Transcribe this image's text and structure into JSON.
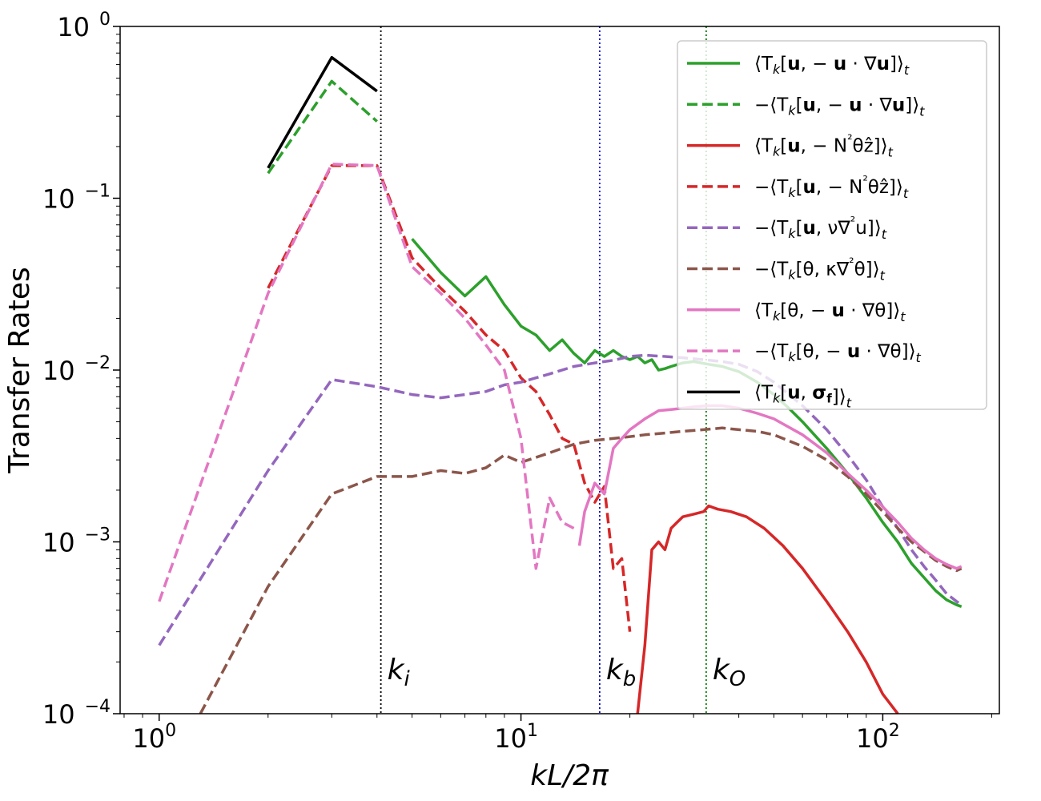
{
  "chart_data": {
    "type": "line",
    "xscale": "log",
    "yscale": "log",
    "xlim": [
      0.78,
      210
    ],
    "ylim": [
      0.0001,
      1
    ],
    "xlabel": "kL/2π",
    "ylabel": "Transfer Rates",
    "x_ticks": [
      {
        "value": 1,
        "label": "10",
        "exp": "0"
      },
      {
        "value": 10,
        "label": "10",
        "exp": "1"
      },
      {
        "value": 100,
        "label": "10",
        "exp": "2"
      }
    ],
    "y_ticks": [
      {
        "value": 0.0001,
        "label": "10",
        "exp": "−4"
      },
      {
        "value": 0.001,
        "label": "10",
        "exp": "−3"
      },
      {
        "value": 0.01,
        "label": "10",
        "exp": "−2"
      },
      {
        "value": 0.1,
        "label": "10",
        "exp": "−1"
      },
      {
        "value": 1,
        "label": "10",
        "exp": "0"
      }
    ],
    "vlines": [
      {
        "name": "k_i",
        "x": 4.1,
        "color": "#000000",
        "label": "k",
        "sub": "i",
        "label_y": 0.00018
      },
      {
        "name": "k_b",
        "x": 16.5,
        "color": "#0000cc",
        "label": "k",
        "sub": "b",
        "label_y": 0.00018
      },
      {
        "name": "k_O",
        "x": 32.5,
        "color": "#008000",
        "label": "k",
        "sub": "O",
        "label_y": 0.00018
      }
    ],
    "legend_position": "upper-right",
    "series": [
      {
        "name": "Tu_adv_pos",
        "color": "#2ca02c",
        "dash": "solid",
        "legend": {
          "pre": "⟨T",
          "k": "k",
          "a": "[",
          "b": "u",
          "c": ", − ",
          "d": "u",
          "e": " · ∇",
          "f": "u",
          "g": "]⟩",
          "t": "t"
        },
        "x": [
          5,
          6,
          7,
          8,
          9,
          10,
          11,
          12,
          13,
          14,
          15,
          16,
          17,
          18,
          19,
          20,
          21,
          22,
          23,
          24,
          25,
          26,
          28,
          30,
          33,
          36,
          40,
          45,
          50,
          55,
          60,
          70,
          80,
          90,
          100,
          110,
          120,
          130,
          140,
          150,
          160,
          165
        ],
        "y": [
          0.058,
          0.037,
          0.027,
          0.035,
          0.024,
          0.018,
          0.016,
          0.013,
          0.015,
          0.0125,
          0.011,
          0.013,
          0.012,
          0.013,
          0.012,
          0.0115,
          0.012,
          0.011,
          0.0115,
          0.01,
          0.0102,
          0.0105,
          0.011,
          0.0112,
          0.0108,
          0.0105,
          0.0098,
          0.0085,
          0.0072,
          0.006,
          0.005,
          0.0035,
          0.0025,
          0.0018,
          0.0013,
          0.001,
          0.00075,
          0.00062,
          0.00052,
          0.00046,
          0.00043,
          0.00042
        ]
      },
      {
        "name": "Tu_adv_neg",
        "color": "#2ca02c",
        "dash": "dashed",
        "legend": {
          "pre": "−⟨T",
          "k": "k",
          "a": "[",
          "b": "u",
          "c": ", − ",
          "d": "u",
          "e": " · ∇",
          "f": "u",
          "g": "]⟩",
          "t": "t"
        },
        "x": [
          2,
          3,
          4
        ],
        "y": [
          0.14,
          0.48,
          0.28
        ]
      },
      {
        "name": "Tu_buoy_pos",
        "color": "#d62728",
        "dash": "solid",
        "legend": {
          "pre": "⟨T",
          "k": "k",
          "a": "[",
          "b": "u",
          "c": ", − N",
          "d": "",
          "e": "²",
          "f": "θẑ",
          "g": "]⟩",
          "t": "t"
        },
        "x": [
          21,
          22,
          23,
          24,
          25,
          26,
          27,
          28,
          30,
          32,
          33,
          35,
          38,
          42,
          47,
          53,
          60,
          70,
          80,
          90,
          100,
          110
        ],
        "y": [
          0.0001,
          0.00025,
          0.0009,
          0.001,
          0.0009,
          0.0012,
          0.0013,
          0.0014,
          0.00145,
          0.0015,
          0.00162,
          0.00155,
          0.0015,
          0.0014,
          0.0012,
          0.00095,
          0.0007,
          0.00045,
          0.0003,
          0.0002,
          0.00013,
          0.0001
        ]
      },
      {
        "name": "Tu_buoy_neg",
        "color": "#d62728",
        "dash": "dashed",
        "legend": {
          "pre": "−⟨T",
          "k": "k",
          "a": "[",
          "b": "u",
          "c": ", − N",
          "d": "",
          "e": "²",
          "f": "θẑ",
          "g": "]⟩",
          "t": "t"
        },
        "x": [
          2,
          3,
          4,
          5,
          6,
          7,
          8,
          9,
          10,
          11,
          12,
          13,
          14,
          15,
          16,
          17,
          18,
          19,
          20
        ],
        "y": [
          0.03,
          0.155,
          0.155,
          0.045,
          0.03,
          0.022,
          0.016,
          0.013,
          0.009,
          0.0075,
          0.0055,
          0.004,
          0.0037,
          0.0022,
          0.0017,
          0.0021,
          0.0007,
          0.0008,
          0.0003
        ]
      },
      {
        "name": "Tu_visc_neg",
        "color": "#9467bd",
        "dash": "dashed",
        "legend": {
          "pre": "−⟨T",
          "k": "k",
          "a": "[",
          "b": "u",
          "c": ", ν∇",
          "d": "",
          "e": "²",
          "f": "u",
          "g": "]⟩",
          "t": "t"
        },
        "x": [
          1,
          2,
          3,
          4,
          5,
          6,
          7,
          8,
          9,
          10,
          12,
          14,
          16,
          18,
          20,
          22,
          25,
          28,
          32,
          36,
          40,
          45,
          50,
          60,
          70,
          80,
          90,
          100,
          110,
          120,
          130,
          140,
          150,
          160,
          165
        ],
        "y": [
          0.00025,
          0.0026,
          0.0088,
          0.008,
          0.0072,
          0.0069,
          0.0072,
          0.0075,
          0.0082,
          0.0085,
          0.0095,
          0.0105,
          0.011,
          0.0114,
          0.012,
          0.0122,
          0.012,
          0.0118,
          0.0115,
          0.0112,
          0.0108,
          0.0098,
          0.0085,
          0.0062,
          0.0045,
          0.0032,
          0.0023,
          0.0016,
          0.0012,
          0.0009,
          0.00072,
          0.0006,
          0.0005,
          0.00045,
          0.00043
        ]
      },
      {
        "name": "Ttheta_diff_neg",
        "color": "#8c564b",
        "dash": "dashed",
        "legend": {
          "pre": "−⟨T",
          "k": "k",
          "a": "[θ, κ∇",
          "b": "",
          "c": "",
          "d": "",
          "e": "²",
          "f": "θ",
          "g": "]⟩",
          "t": "t"
        },
        "x": [
          1.3,
          2,
          3,
          4,
          5,
          6,
          7,
          8,
          9,
          10,
          12,
          14,
          16,
          18,
          20,
          22,
          25,
          28,
          32,
          36,
          40,
          45,
          50,
          60,
          70,
          80,
          90,
          100,
          110,
          120,
          130,
          140,
          150,
          160,
          165
        ],
        "y": [
          0.0001,
          0.00055,
          0.0019,
          0.0024,
          0.0024,
          0.0026,
          0.0025,
          0.0027,
          0.0032,
          0.0029,
          0.0033,
          0.0037,
          0.0039,
          0.004,
          0.0041,
          0.0042,
          0.0043,
          0.0044,
          0.0045,
          0.0046,
          0.0045,
          0.0044,
          0.0042,
          0.0036,
          0.003,
          0.0024,
          0.0019,
          0.0015,
          0.0012,
          0.001,
          0.00088,
          0.00078,
          0.00072,
          0.00068,
          0.0007
        ]
      },
      {
        "name": "Ttheta_adv_pos",
        "color": "#e377c2",
        "dash": "solid",
        "legend": {
          "pre": "⟨T",
          "k": "k",
          "a": "[θ, − ",
          "b": "",
          "c": "",
          "d": "u",
          "e": " · ∇",
          "f": "θ",
          "g": "]⟩",
          "t": "t"
        },
        "x": [
          14.5,
          15,
          16,
          17,
          18,
          19,
          20,
          22,
          24,
          26,
          28,
          30,
          33,
          36,
          40,
          45,
          50,
          60,
          70,
          80,
          90,
          100,
          110,
          120,
          130,
          140,
          150,
          160,
          165
        ],
        "y": [
          0.00095,
          0.0015,
          0.0022,
          0.0019,
          0.0035,
          0.004,
          0.0045,
          0.0052,
          0.0058,
          0.0059,
          0.006,
          0.0061,
          0.0062,
          0.0062,
          0.006,
          0.0056,
          0.0052,
          0.0042,
          0.0033,
          0.0025,
          0.002,
          0.0016,
          0.0013,
          0.00105,
          0.0009,
          0.0008,
          0.00074,
          0.0007,
          0.00072
        ]
      },
      {
        "name": "Ttheta_adv_neg",
        "color": "#e377c2",
        "dash": "dashed",
        "legend": {
          "pre": "−⟨T",
          "k": "k",
          "a": "[θ, − ",
          "b": "",
          "c": "",
          "d": "u",
          "e": " · ∇",
          "f": "θ",
          "g": "]⟩",
          "t": "t"
        },
        "x": [
          1,
          2,
          3,
          4,
          5,
          6,
          7,
          8,
          9,
          10,
          11,
          12,
          13,
          14
        ],
        "y": [
          0.00045,
          0.028,
          0.158,
          0.155,
          0.04,
          0.028,
          0.02,
          0.014,
          0.01,
          0.004,
          0.0007,
          0.0018,
          0.0013,
          0.0012
        ]
      },
      {
        "name": "Tu_force_pos",
        "color": "#000000",
        "dash": "solid",
        "legend": {
          "pre": "⟨T",
          "k": "k",
          "a": "[",
          "b": "u",
          "c": ", ",
          "d": "σ",
          "e": "",
          "f": "",
          "g": "]⟩",
          "t": "t",
          "dsub": "f"
        },
        "x": [
          2,
          3,
          4
        ],
        "y": [
          0.15,
          0.66,
          0.42
        ]
      }
    ]
  }
}
